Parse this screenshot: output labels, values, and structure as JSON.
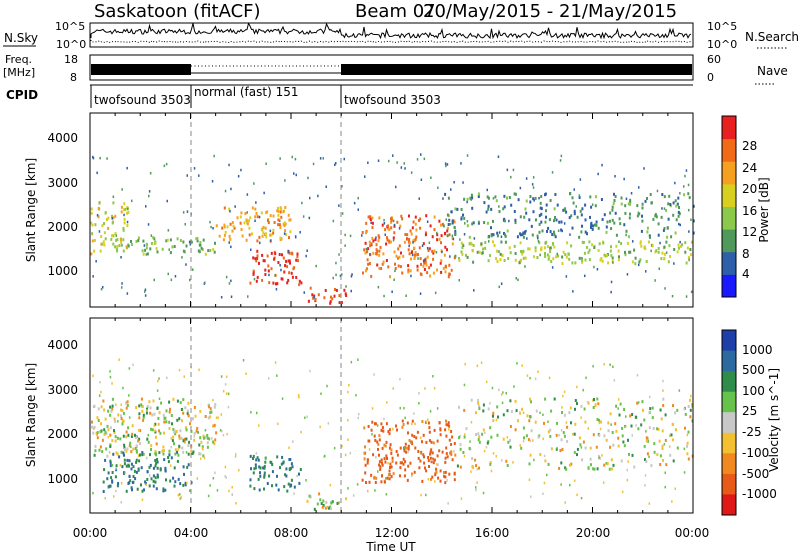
{
  "header": {
    "station": "Saskatoon (fitACF)",
    "beam": "Beam 07",
    "dates": "20/May/2015 - 21/May/2015"
  },
  "nsky_panel": {
    "left_label": "N.Sky",
    "left_ticks": [
      "10^5",
      "10^0"
    ],
    "right_ticks": [
      "10^5",
      "10^0"
    ],
    "right_label": "N.Search"
  },
  "freq_panel": {
    "left_label_line1": "Freq.",
    "left_label_line2": "[MHz]",
    "left_ticks": [
      "18",
      "8"
    ],
    "right_ticks": [
      "60",
      "0"
    ],
    "right_label": "Nave"
  },
  "cpid_panel": {
    "label": "CPID",
    "modes": [
      {
        "name": "twofsound 3503",
        "start_hour": 0
      },
      {
        "name": "normal (fast) 151",
        "start_hour": 4
      },
      {
        "name": "twofsound 3503",
        "start_hour": 10
      }
    ]
  },
  "chart_data": [
    {
      "type": "heatmap",
      "panel": "power",
      "ylabel": "Slant Range [km]",
      "xlabel": "",
      "xlim_hours": [
        0,
        24
      ],
      "ylim_km": [
        180,
        4600
      ],
      "yticks": [
        "1000",
        "2000",
        "3000",
        "4000"
      ],
      "colorbar": {
        "label": "Power [dB]",
        "ticks": [
          "4",
          "8",
          "12",
          "16",
          "20",
          "24",
          "28"
        ],
        "range": [
          0,
          30
        ],
        "colors": [
          "#1a1aff",
          "#2e5fa8",
          "#4f9a5a",
          "#8cc84a",
          "#d8d020",
          "#f5a020",
          "#f06a18",
          "#e82020"
        ]
      },
      "features": [
        {
          "hours": [
            0,
            1.5
          ],
          "range_km": [
            1400,
            2600
          ],
          "power_db": 16
        },
        {
          "hours": [
            1.5,
            5
          ],
          "range_km": [
            1400,
            1800
          ],
          "power_db": 12
        },
        {
          "hours": [
            5,
            8
          ],
          "range_km": [
            1700,
            2500
          ],
          "power_db": 20
        },
        {
          "hours": [
            6.3,
            8.4
          ],
          "range_km": [
            700,
            1500
          ],
          "power_db": 28
        },
        {
          "hours": [
            8.6,
            10.2
          ],
          "range_km": [
            280,
            650
          ],
          "power_db": 26
        },
        {
          "hours": [
            10.8,
            14.5
          ],
          "range_km": [
            900,
            2300
          ],
          "power_db": 24
        },
        {
          "hours": [
            14.5,
            24
          ],
          "range_km": [
            1200,
            1700
          ],
          "power_db": 14
        },
        {
          "hours": [
            14,
            24
          ],
          "range_km": [
            1800,
            2800
          ],
          "power_db": 8
        }
      ]
    },
    {
      "type": "heatmap",
      "panel": "velocity",
      "ylabel": "Slant Range [km]",
      "xlabel": "Time UT",
      "xlim_hours": [
        0,
        24
      ],
      "ylim_km": [
        180,
        4600
      ],
      "xticks": [
        "00:00",
        "04:00",
        "08:00",
        "12:00",
        "16:00",
        "20:00",
        "00:00"
      ],
      "yticks": [
        "1000",
        "2000",
        "3000",
        "4000"
      ],
      "colorbar": {
        "label": "Velocity [m s^-1]",
        "ticks": [
          "1000",
          "500",
          "100",
          "25",
          "-25",
          "-100",
          "-500",
          "-1000"
        ],
        "colors": [
          "#1f3fa8",
          "#2d6aa0",
          "#2f8c4a",
          "#66c24a",
          "#c8c8c8",
          "#f2c030",
          "#f08a20",
          "#e85a18",
          "#e01818"
        ]
      },
      "features": [
        {
          "hours": [
            0,
            5
          ],
          "range_km": [
            1500,
            2800
          ],
          "velocity_ms": 0
        },
        {
          "hours": [
            0.5,
            4
          ],
          "range_km": [
            700,
            1600
          ],
          "velocity_ms": 300
        },
        {
          "hours": [
            6.3,
            8.4
          ],
          "range_km": [
            700,
            1500
          ],
          "velocity_ms": 300
        },
        {
          "hours": [
            8.6,
            10.2
          ],
          "range_km": [
            280,
            650
          ],
          "velocity_ms": 0
        },
        {
          "hours": [
            10.8,
            14.5
          ],
          "range_km": [
            900,
            2300
          ],
          "velocity_ms": -400
        },
        {
          "hours": [
            14.5,
            24
          ],
          "range_km": [
            1200,
            2800
          ],
          "velocity_ms": 0
        }
      ]
    }
  ]
}
